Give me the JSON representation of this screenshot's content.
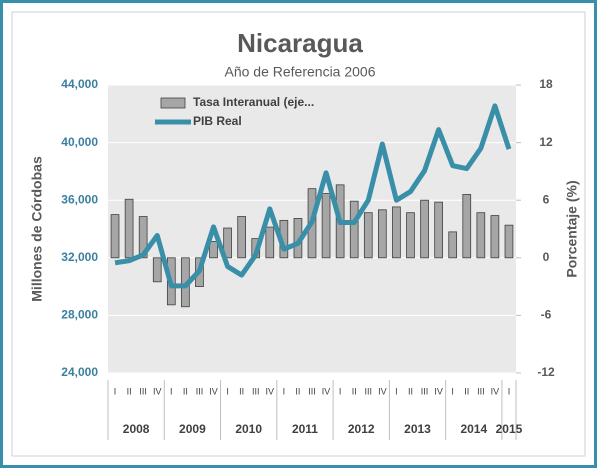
{
  "chart_data": {
    "type": "bar",
    "title": "Nicaragua",
    "subtitle": "Año de Referencia 2006",
    "y_label": "Millones de Córdobas",
    "y2_label": "Porcentaje (%)",
    "categories": [
      "I",
      "II",
      "III",
      "IV",
      "I",
      "II",
      "III",
      "IV",
      "I",
      "II",
      "III",
      "IV",
      "I",
      "II",
      "III",
      "IV",
      "I",
      "II",
      "III",
      "IV",
      "I",
      "II",
      "III",
      "IV",
      "I",
      "II",
      "III",
      "IV",
      "I"
    ],
    "groups": [
      "2008",
      "2009",
      "2010",
      "2011",
      "2012",
      "2013",
      "2014",
      "2015"
    ],
    "series": [
      {
        "name": "Tasa Interanual (eje...",
        "type": "bar",
        "axis": "y2",
        "color": "#a6a6a6",
        "values": [
          4.5,
          6.1,
          4.3,
          -2.5,
          -4.9,
          -5.1,
          -3.0,
          1.7,
          3.1,
          4.3,
          2.0,
          3.2,
          3.9,
          4.1,
          7.2,
          6.7,
          7.6,
          5.9,
          4.7,
          5.0,
          5.3,
          4.7,
          6.0,
          5.8,
          2.7,
          6.6,
          4.7,
          4.4,
          3.4
        ]
      },
      {
        "name": "PIB Real",
        "type": "line",
        "axis": "y",
        "color": "#3a8fa8",
        "values": [
          31650,
          31800,
          32200,
          33550,
          30050,
          30050,
          31100,
          34150,
          31400,
          30800,
          32200,
          35400,
          32600,
          33000,
          34500,
          37900,
          34450,
          34450,
          36000,
          39900,
          36000,
          36600,
          38050,
          40900,
          38400,
          38200,
          39600,
          42550,
          39550
        ]
      }
    ],
    "ylim": [
      24000,
      44000
    ],
    "yticks": [
      {
        "value": 24000,
        "label": "24,000"
      },
      {
        "value": 28000,
        "label": "28,000"
      },
      {
        "value": 32000,
        "label": "32,000"
      },
      {
        "value": 36000,
        "label": "36,000"
      },
      {
        "value": 40000,
        "label": "40,000"
      },
      {
        "value": 44000,
        "label": "44,000"
      }
    ],
    "y2lim": [
      -12,
      18
    ],
    "y2ticks": [
      -12,
      -6,
      0,
      6,
      12,
      18
    ],
    "grid": true,
    "legend": "top-left"
  }
}
